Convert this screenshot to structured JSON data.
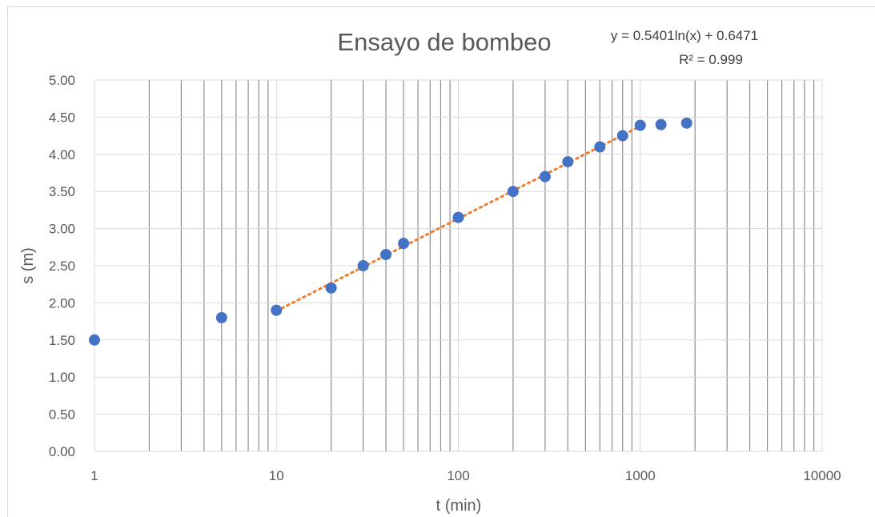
{
  "chart_data": {
    "type": "scatter",
    "title": "Ensayo de bombeo",
    "xlabel": "t (min)",
    "ylabel": "s (m)",
    "x_scale": "log",
    "xlim": [
      1,
      10000
    ],
    "ylim": [
      0,
      5
    ],
    "grid": "both (log minor vertical lines, horizontal major lines)",
    "x_ticks": [
      "1",
      "10",
      "100",
      "1000",
      "10000"
    ],
    "y_ticks": [
      "0.00",
      "0.50",
      "1.00",
      "1.50",
      "2.00",
      "2.50",
      "3.00",
      "3.50",
      "4.00",
      "4.50",
      "5.00"
    ],
    "series": [
      {
        "color": "#4472c4",
        "x": [
          1,
          5,
          10,
          20,
          30,
          40,
          50,
          100,
          200,
          300,
          400,
          600,
          800,
          1000,
          1300,
          1800
        ],
        "y": [
          1.5,
          1.8,
          1.9,
          2.2,
          2.5,
          2.65,
          2.8,
          3.15,
          3.5,
          3.7,
          3.9,
          4.1,
          4.25,
          4.39,
          4.4,
          4.42
        ]
      }
    ],
    "trendline": {
      "type": "logarithmic",
      "color": "#ed7d31",
      "style": "dotted",
      "a": 0.5401,
      "b": 0.6471,
      "x_range": [
        10,
        1000
      ],
      "equation_label": "y = 0.5401ln(x) + 0.6471",
      "r2_label": "R² = 0.999"
    }
  }
}
